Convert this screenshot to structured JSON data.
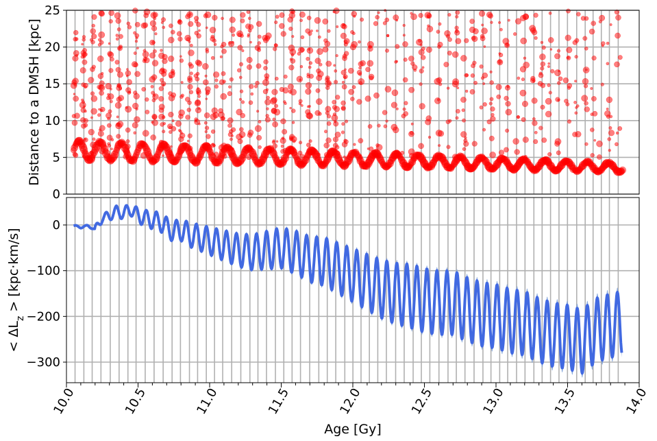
{
  "chart_data": [
    {
      "type": "scatter",
      "ylabel": "Distance to a DMSH  [kpc]",
      "xlim": [
        10.0,
        14.0
      ],
      "ylim": [
        0,
        25
      ],
      "yticks": [
        0,
        5,
        10,
        15,
        20,
        25
      ],
      "grid": true,
      "marker_color": "#ff0000",
      "marker_alpha": 0.5,
      "main_orbit": {
        "x": [
          10.05,
          10.1,
          10.15,
          10.2,
          10.25,
          10.3,
          10.35,
          10.4,
          10.45,
          10.5,
          10.55,
          10.6,
          10.65,
          10.7,
          10.75,
          10.8,
          10.85,
          10.9,
          10.95,
          11.0,
          11.1,
          11.2,
          11.3,
          11.4,
          11.5,
          11.6,
          11.7,
          11.8,
          11.9,
          12.0,
          12.2,
          12.4,
          12.6,
          12.8,
          13.0,
          13.2,
          13.4,
          13.6,
          13.8,
          13.88
        ],
        "y": [
          6.5,
          5.0,
          6.8,
          5.2,
          7.2,
          5.0,
          7.0,
          5.3,
          7.1,
          5.0,
          6.9,
          5.2,
          6.8,
          5.0,
          6.5,
          5.0,
          6.3,
          4.8,
          6.0,
          4.8,
          5.8,
          4.6,
          5.5,
          4.5,
          5.3,
          4.4,
          5.0,
          4.2,
          4.8,
          4.2,
          4.5,
          4.0,
          4.3,
          3.8,
          4.0,
          3.6,
          3.8,
          3.3,
          3.7,
          3.5
        ]
      }
    },
    {
      "type": "line",
      "xlabel": "Age  [Gy]",
      "ylabel": "< ΔL_z >  [kpc·km/s]",
      "ylabel_main": "< ΔL",
      "ylabel_sub": "z",
      "ylabel_unit": " >  [kpc·km/s]",
      "xlim": [
        10.0,
        14.0
      ],
      "ylim": [
        -345,
        60
      ],
      "xticks": [
        "10.0",
        "10.5",
        "11.0",
        "11.5",
        "12.0",
        "12.5",
        "13.0",
        "13.5",
        "14.0"
      ],
      "yticks": [
        "0",
        "−100",
        "−200",
        "−300"
      ],
      "ytick_values": [
        0,
        -100,
        -200,
        -300
      ],
      "grid": true,
      "line_color": "#4169e1",
      "band_color": "#7a9fd8",
      "x": [
        10.05,
        10.1,
        10.15,
        10.2,
        10.25,
        10.3,
        10.35,
        10.4,
        10.45,
        10.5,
        10.55,
        10.6,
        10.65,
        10.7,
        10.75,
        10.8,
        10.85,
        10.9,
        10.95,
        11.0,
        11.1,
        11.2,
        11.3,
        11.4,
        11.5,
        11.6,
        11.7,
        11.8,
        11.9,
        12.0,
        12.1,
        12.2,
        12.3,
        12.4,
        12.5,
        12.6,
        12.7,
        12.8,
        12.9,
        13.0,
        13.1,
        13.2,
        13.3,
        13.4,
        13.5,
        13.6,
        13.7,
        13.8,
        13.88
      ],
      "y": [
        -2,
        -5,
        -2,
        -10,
        15,
        20,
        30,
        25,
        35,
        20,
        15,
        10,
        8,
        -5,
        -15,
        -10,
        -20,
        -25,
        -30,
        -35,
        -45,
        -55,
        -60,
        -55,
        -50,
        -60,
        -75,
        -80,
        -95,
        -110,
        -125,
        -140,
        -150,
        -155,
        -165,
        -170,
        -170,
        -185,
        -195,
        -200,
        -210,
        -215,
        -230,
        -240,
        -245,
        -255,
        -230,
        -220,
        -215
      ]
    }
  ]
}
